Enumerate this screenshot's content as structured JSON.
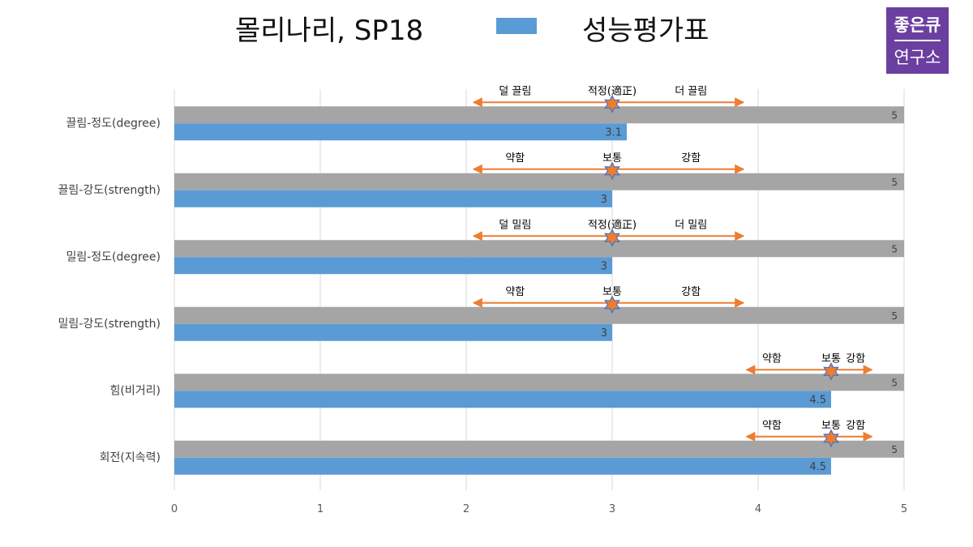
{
  "header": {
    "title": "몰리나리, SP18",
    "legend_label": "성능평가표"
  },
  "logo": {
    "line1": "좋은큐",
    "line2": "연구소"
  },
  "colors": {
    "max_bar": "#A5A5A5",
    "value_bar": "#5B9BD5",
    "arrow": "#ED7D31",
    "marker_fill": "#ED7D31",
    "marker_stroke": "#4472C4",
    "grid": "#D9D9D9"
  },
  "chart_data": {
    "type": "bar",
    "orientation": "horizontal",
    "title": "몰리나리, SP18",
    "categories": [
      "끌림-정도(degree)",
      "끌림-강도(strength)",
      "밀림-정도(degree)",
      "밀림-강도(strength)",
      "힘(비거리)",
      "회전(지속력)"
    ],
    "series": [
      {
        "values": [
          5,
          5,
          5,
          5,
          5,
          5
        ],
        "data_labels": [
          "5",
          "5",
          "5",
          "5",
          "5",
          "5"
        ]
      },
      {
        "name": "성능평가표",
        "values": [
          3.1,
          3,
          3,
          3,
          4.5,
          4.5
        ],
        "data_labels": [
          "3.1",
          "3",
          "3",
          "3",
          "4.5",
          "4.5"
        ]
      }
    ],
    "xlim": [
      0,
      5
    ],
    "x_ticks": [
      0,
      1,
      2,
      3,
      4,
      5
    ],
    "x_tick_labels": [
      "0",
      "1",
      "2",
      "3",
      "4",
      "5"
    ],
    "grid": true,
    "annotations": [
      {
        "marker": 3,
        "left": "덜 끌림",
        "center": "적정(適正)",
        "right": "더 끌림",
        "arrow_from": 2.05,
        "arrow_to": 3.9
      },
      {
        "marker": 3,
        "left": "약함",
        "center": "보통",
        "right": "강함",
        "arrow_from": 2.05,
        "arrow_to": 3.9
      },
      {
        "marker": 3,
        "left": "덜 밀림",
        "center": "적정(適正)",
        "right": "더 밀림",
        "arrow_from": 2.05,
        "arrow_to": 3.9
      },
      {
        "marker": 3,
        "left": "약함",
        "center": "보통",
        "right": "강함",
        "arrow_from": 2.05,
        "arrow_to": 3.9
      },
      {
        "marker": 4.5,
        "left": "약함",
        "center": "보통",
        "right": "강함",
        "arrow_from": 3.92,
        "arrow_to": 4.78
      },
      {
        "marker": 4.5,
        "left": "약함",
        "center": "보통",
        "right": "강함",
        "arrow_from": 3.92,
        "arrow_to": 4.78
      }
    ]
  }
}
